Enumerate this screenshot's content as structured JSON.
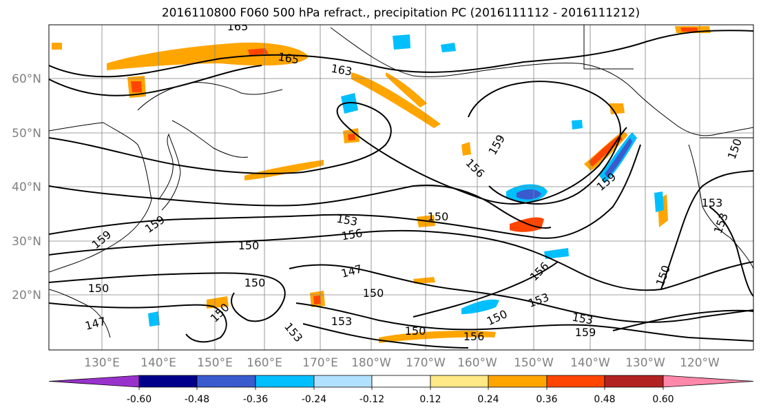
{
  "title": "2016110800 F060 500 hPa refract., precipitation PC (2016111112 - 2016111212)",
  "lat_labels": [
    "60°N",
    "50°N",
    "40°N",
    "30°N",
    "20°N"
  ],
  "lon_labels": [
    "130°E",
    "140°E",
    "150°E",
    "160°E",
    "170°E",
    "180°W",
    "170°W",
    "160°W",
    "150°W",
    "140°W",
    "130°W",
    "120°W"
  ],
  "colorbar": {
    "colors": [
      "#9932cc",
      "#00008b",
      "#3a5bcd",
      "#00bfff",
      "#b0e2ff",
      "#ffffff",
      "#ffe886",
      "#ffa500",
      "#ff4500",
      "#b22222",
      "#ff88aa"
    ],
    "tick_labels": [
      "-0.60",
      "-0.48",
      "-0.36",
      "-0.24",
      "-0.12",
      "0.12",
      "0.24",
      "0.36",
      "0.48",
      "0.60"
    ]
  },
  "contour_labels": [
    "165",
    "165",
    "163",
    "159",
    "156",
    "159",
    "153",
    "150",
    "150",
    "153",
    "156",
    "147",
    "150",
    "150",
    "150",
    "150",
    "147",
    "153",
    "153",
    "150",
    "153",
    "156",
    "153",
    "159",
    "150",
    "150",
    "159",
    "153",
    "150",
    "156",
    "159"
  ],
  "colors": {
    "coast": "#000000",
    "grid": "#808080"
  }
}
